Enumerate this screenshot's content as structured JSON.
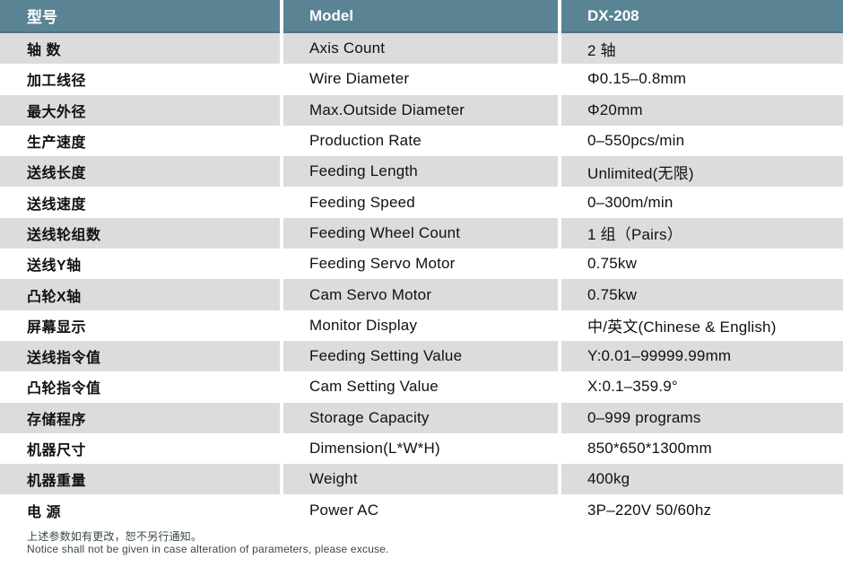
{
  "colors": {
    "header_bg": "#5a8494",
    "header_border": "#4d7484",
    "header_text": "#ffffff",
    "row_bg": "#ffffff",
    "row_alt_bg": "#dcdcdc",
    "body_text": "#111111",
    "footer_text": "#3a4749"
  },
  "table": {
    "header": {
      "label_cn": "型号",
      "label_en": "Model",
      "value": "DX-208"
    },
    "rows": [
      {
        "cn": "轴 数",
        "en": "Axis Count",
        "value": "2 轴"
      },
      {
        "cn": "加工线径",
        "en": "Wire Diameter",
        "value": "Φ0.15–0.8mm"
      },
      {
        "cn": "最大外径",
        "en": "Max.Outside Diameter",
        "value": "Φ20mm"
      },
      {
        "cn": "生产速度",
        "en": "Production Rate",
        "value": "0–550pcs/min"
      },
      {
        "cn": "送线长度",
        "en": "Feeding Length",
        "value": "Unlimited(无限)"
      },
      {
        "cn": "送线速度",
        "en": "Feeding Speed",
        "value": "0–300m/min"
      },
      {
        "cn": "送线轮组数",
        "en": "Feeding Wheel Count",
        "value": "1 组（Pairs）"
      },
      {
        "cn": "送线Y轴",
        "en": "Feeding Servo Motor",
        "value": "0.75kw"
      },
      {
        "cn": "凸轮X轴",
        "en": "Cam Servo Motor",
        "value": "0.75kw"
      },
      {
        "cn": "屏幕显示",
        "en": "Monitor Display",
        "value": "中/英文(Chinese & English)"
      },
      {
        "cn": "送线指令值",
        "en": "Feeding Setting Value",
        "value": "Y:0.01–99999.99mm"
      },
      {
        "cn": "凸轮指令值",
        "en": "Cam Setting Value",
        "value": "X:0.1–359.9°"
      },
      {
        "cn": "存储程序",
        "en": "Storage Capacity",
        "value": "0–999 programs"
      },
      {
        "cn": "机器尺寸",
        "en": "Dimension(L*W*H)",
        "value": "850*650*1300mm"
      },
      {
        "cn": "机器重量",
        "en": "Weight",
        "value": "400kg"
      },
      {
        "cn": "电 源",
        "en": "Power AC",
        "value": "3P–220V 50/60hz"
      }
    ]
  },
  "footer": {
    "note_cn": "上述参数如有更改，恕不另行通知。",
    "note_en": "Notice shall not be given in case alteration of parameters, please excuse."
  }
}
